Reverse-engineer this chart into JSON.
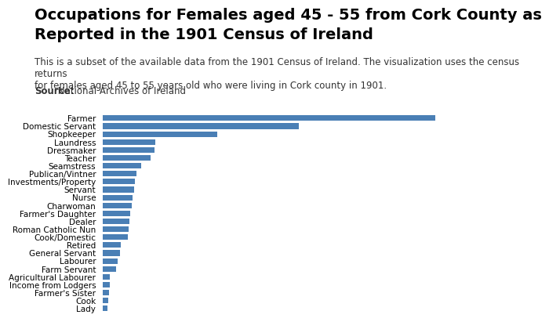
{
  "title_line1": "Occupations for Females aged 45 - 55 from Cork County as",
  "title_line2": "Reported in the 1901 Census of Ireland",
  "subtitle": "This is a subset of the available data from the 1901 Census of Ireland. The visualization uses the census returns\nfor females aged 45 to 55 years old who were living in Cork county in 1901.",
  "source_label": "Source:",
  "source_text": " National Archives of Ireland",
  "categories": [
    "Farmer",
    "Domestic Servant",
    "Shopkeeper",
    "Laundress",
    "Dressmaker",
    "Teacher",
    "Seamstress",
    "Publican/Vintner",
    "Investments/Property",
    "Servant",
    "Nurse",
    "Charwoman",
    "Farmer's Daughter",
    "Dealer",
    "Roman Catholic Nun",
    "Cook/Domestic",
    "Retired",
    "General Servant",
    "Labourer",
    "Farm Servant",
    "Agricultural Labourer",
    "Income from Lodgers",
    "Farmer's Sister",
    "Cook",
    "Lady"
  ],
  "values": [
    1390,
    820,
    480,
    220,
    215,
    200,
    160,
    140,
    135,
    130,
    125,
    120,
    115,
    110,
    108,
    105,
    75,
    70,
    60,
    55,
    30,
    28,
    25,
    22,
    20
  ],
  "bar_color": "#4a7fb5",
  "background_color": "#ffffff",
  "bar_height": 0.7,
  "label_fontsize": 7.5,
  "title_fontsize": 14,
  "subtitle_fontsize": 8.5
}
